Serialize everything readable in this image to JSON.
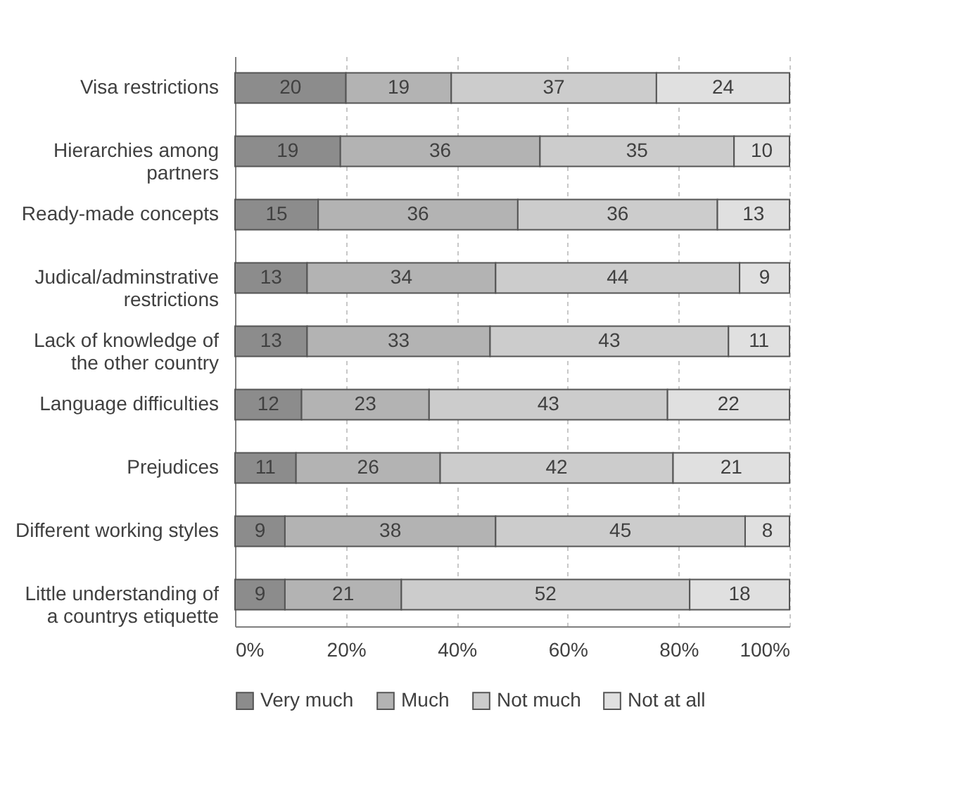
{
  "chart_data": {
    "type": "bar",
    "orientation": "horizontal",
    "stacked": true,
    "data_labels": true,
    "grid": "x",
    "legend": "bottom",
    "xlim": [
      0,
      100
    ],
    "xticks": [
      {
        "value": 0,
        "label": "0%"
      },
      {
        "value": 20,
        "label": "20%"
      },
      {
        "value": 40,
        "label": "40%"
      },
      {
        "value": 60,
        "label": "60%"
      },
      {
        "value": 80,
        "label": "80%"
      },
      {
        "value": 100,
        "label": "100%"
      }
    ],
    "categories": [
      "Visa restrictions",
      "Hierarchies among partners",
      "Ready-made concepts",
      "Judical/adminstrative restrictions",
      "Lack of knowledge of the other country",
      "Language difficulties",
      "Prejudices",
      "Different working styles",
      "Little understanding of a countrys etiquette"
    ],
    "series": [
      {
        "name": "Very much",
        "color": "#8c8c8c",
        "values": [
          20,
          19,
          15,
          13,
          13,
          12,
          11,
          9,
          9
        ]
      },
      {
        "name": "Much",
        "color": "#b3b3b3",
        "values": [
          19,
          36,
          36,
          34,
          33,
          23,
          26,
          38,
          21
        ]
      },
      {
        "name": "Not much",
        "color": "#cccccc",
        "values": [
          37,
          35,
          36,
          44,
          43,
          43,
          42,
          45,
          52
        ]
      },
      {
        "name": "Not at all",
        "color": "#e0e0e0",
        "values": [
          24,
          10,
          13,
          9,
          11,
          22,
          21,
          8,
          18
        ]
      }
    ]
  }
}
